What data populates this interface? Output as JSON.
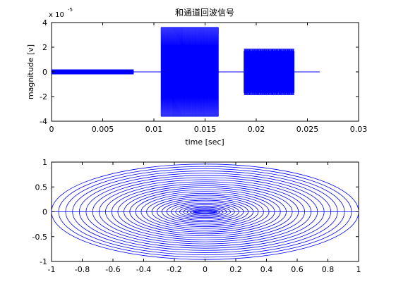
{
  "colors": {
    "line": "#0000ff",
    "axes": "#000000",
    "background": "#ffffff"
  },
  "chart_data": [
    {
      "type": "line",
      "title": "和通道回波信号",
      "xlabel": "time [sec]",
      "ylabel": "magnitude [v]",
      "exponent": "x 10^-5",
      "exponent_base": "x 10",
      "exponent_power": "-5",
      "xlim": [
        0,
        0.03
      ],
      "ylim": [
        -4,
        4
      ],
      "xticks": [
        0,
        0.005,
        0.01,
        0.015,
        0.02,
        0.025,
        0.03
      ],
      "xtick_labels": [
        "0",
        "0.005",
        "0.01",
        "0.015",
        "0.02",
        "0.025",
        "0.03"
      ],
      "yticks": [
        -4,
        -2,
        0,
        2,
        4
      ],
      "ytick_labels": [
        "-4",
        "-2",
        "0",
        "2",
        "4"
      ],
      "grid": false,
      "legend": "none",
      "series": [
        {
          "segments": [
            {
              "x_start": 0.0,
              "x_end": 0.008,
              "peak": 0.2,
              "density": 180
            },
            {
              "x_start": 0.0107,
              "x_end": 0.0163,
              "peak": 3.6,
              "density": 80
            },
            {
              "x_start": 0.0188,
              "x_end": 0.0237,
              "peak": 1.85,
              "upper_band": 1.7,
              "density": 130
            }
          ],
          "baseline": 0,
          "x_end": 0.0262
        }
      ]
    },
    {
      "type": "line",
      "title": "",
      "xlabel": "",
      "ylabel": "",
      "xlim": [
        -1,
        1
      ],
      "ylim": [
        -1,
        1
      ],
      "xticks": [
        -1,
        -0.8,
        -0.6,
        -0.4,
        -0.2,
        0,
        0.2,
        0.4,
        0.6,
        0.8,
        1
      ],
      "xtick_labels": [
        "-1",
        "-0.8",
        "-0.6",
        "-0.4",
        "-0.2",
        "0",
        "0.2",
        "0.4",
        "0.6",
        "0.8",
        "1"
      ],
      "yticks": [
        -1,
        -0.5,
        0,
        0.5,
        1
      ],
      "ytick_labels": [
        "-1",
        "-0.5",
        "0",
        "0.5",
        "1"
      ],
      "grid": false,
      "legend": "none",
      "series": [
        {
          "shape": "concentric ellipses",
          "x_radius_range": [
            0.07,
            1.0
          ],
          "y_radius_range": [
            0.02,
            0.96
          ],
          "count": 28
        }
      ]
    }
  ]
}
